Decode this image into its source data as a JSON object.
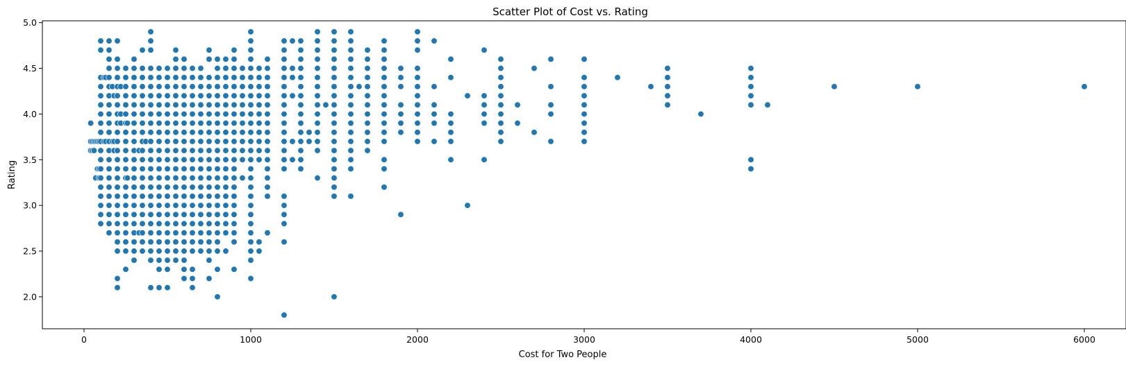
{
  "chart_data": {
    "type": "scatter",
    "title": "Scatter Plot of Cost vs. Rating",
    "xlabel": "Cost for Two People",
    "ylabel": "Rating",
    "xlim": [
      -250,
      6250
    ],
    "ylim": [
      1.65,
      5.02
    ],
    "xticks": [
      0,
      1000,
      2000,
      3000,
      4000,
      5000,
      6000
    ],
    "yticks": [
      2.0,
      2.5,
      3.0,
      3.5,
      4.0,
      4.5,
      5.0
    ],
    "xtick_labels": [
      "0",
      "1000",
      "2000",
      "3000",
      "4000",
      "5000",
      "6000"
    ],
    "ytick_labels": [
      "2.0",
      "2.5",
      "3.0",
      "3.5",
      "4.0",
      "4.5",
      "5.0"
    ],
    "grid": false,
    "marker_color": "#1f77b4",
    "marker_edge_color": "#ffffff",
    "columns": [
      {
        "x": 40,
        "y": [
          3.6,
          3.7,
          3.9
        ]
      },
      {
        "x": 50,
        "y": [
          3.6,
          3.7
        ]
      },
      {
        "x": 60,
        "y": [
          3.6,
          3.7
        ]
      },
      {
        "x": 70,
        "y": [
          3.3,
          3.7
        ]
      },
      {
        "x": 80,
        "y": [
          3.4,
          3.7
        ]
      },
      {
        "x": 90,
        "y": [
          3.3,
          3.4,
          3.7
        ]
      },
      {
        "x": 100,
        "y": [
          2.8,
          2.9,
          3.0,
          3.1,
          3.2,
          3.3,
          3.4,
          3.5,
          3.6,
          3.7,
          3.8,
          3.9,
          4.0,
          4.1,
          4.2,
          4.3,
          4.4,
          4.7,
          4.8
        ]
      },
      {
        "x": 120,
        "y": [
          3.7,
          4.4
        ]
      },
      {
        "x": 130,
        "y": [
          3.7,
          4.4
        ]
      },
      {
        "x": 150,
        "y": [
          2.7,
          2.8,
          2.9,
          3.0,
          3.1,
          3.2,
          3.3,
          3.4,
          3.5,
          3.6,
          3.7,
          3.8,
          3.9,
          4.0,
          4.1,
          4.2,
          4.3,
          4.4,
          4.5,
          4.6,
          4.7,
          4.8
        ]
      },
      {
        "x": 170,
        "y": [
          3.7,
          4.3
        ]
      },
      {
        "x": 180,
        "y": [
          3.6,
          3.7,
          4.2
        ]
      },
      {
        "x": 200,
        "y": [
          2.1,
          2.2,
          2.5,
          2.6,
          2.7,
          2.8,
          2.9,
          3.0,
          3.1,
          3.2,
          3.3,
          3.4,
          3.5,
          3.6,
          3.7,
          3.8,
          3.9,
          4.0,
          4.1,
          4.2,
          4.3,
          4.4,
          4.5,
          4.6,
          4.8
        ]
      },
      {
        "x": 220,
        "y": [
          3.9,
          4.0,
          4.3
        ]
      },
      {
        "x": 250,
        "y": [
          2.3,
          2.5,
          2.6,
          2.7,
          2.8,
          2.9,
          3.0,
          3.1,
          3.2,
          3.3,
          3.4,
          3.5,
          3.6,
          3.7,
          3.8,
          3.9,
          4.0,
          4.1,
          4.2,
          4.3,
          4.4,
          4.5
        ]
      },
      {
        "x": 260,
        "y": [
          3.3,
          3.9
        ]
      },
      {
        "x": 300,
        "y": [
          2.4,
          2.5,
          2.6,
          2.7,
          2.8,
          2.9,
          3.0,
          3.1,
          3.2,
          3.3,
          3.4,
          3.5,
          3.6,
          3.7,
          3.8,
          3.9,
          4.0,
          4.1,
          4.2,
          4.3,
          4.4,
          4.5,
          4.6
        ]
      },
      {
        "x": 330,
        "y": [
          2.7,
          3.6
        ]
      },
      {
        "x": 350,
        "y": [
          2.5,
          2.6,
          2.7,
          2.8,
          2.9,
          3.0,
          3.1,
          3.2,
          3.3,
          3.4,
          3.5,
          3.6,
          3.7,
          3.8,
          3.9,
          4.0,
          4.1,
          4.2,
          4.3,
          4.4,
          4.5,
          4.7
        ]
      },
      {
        "x": 370,
        "y": [
          3.7
        ]
      },
      {
        "x": 400,
        "y": [
          2.1,
          2.4,
          2.5,
          2.6,
          2.7,
          2.8,
          2.9,
          3.0,
          3.1,
          3.2,
          3.3,
          3.4,
          3.5,
          3.6,
          3.7,
          3.8,
          3.9,
          4.0,
          4.1,
          4.2,
          4.3,
          4.4,
          4.5,
          4.7,
          4.8,
          4.9
        ]
      },
      {
        "x": 450,
        "y": [
          2.1,
          2.3,
          2.4,
          2.5,
          2.6,
          2.7,
          2.8,
          2.9,
          3.0,
          3.1,
          3.2,
          3.3,
          3.4,
          3.5,
          3.6,
          3.7,
          3.8,
          3.9,
          4.0,
          4.1,
          4.2,
          4.3,
          4.4,
          4.5
        ]
      },
      {
        "x": 500,
        "y": [
          2.1,
          2.3,
          2.4,
          2.5,
          2.6,
          2.7,
          2.8,
          2.9,
          3.0,
          3.1,
          3.2,
          3.3,
          3.4,
          3.5,
          3.6,
          3.7,
          3.8,
          3.9,
          4.0,
          4.1,
          4.2,
          4.3,
          4.4,
          4.5
        ]
      },
      {
        "x": 550,
        "y": [
          2.4,
          2.5,
          2.6,
          2.7,
          2.8,
          2.9,
          3.0,
          3.1,
          3.2,
          3.3,
          3.4,
          3.5,
          3.6,
          3.7,
          3.8,
          3.9,
          4.0,
          4.1,
          4.2,
          4.3,
          4.4,
          4.5,
          4.6,
          4.7
        ]
      },
      {
        "x": 600,
        "y": [
          2.2,
          2.3,
          2.4,
          2.5,
          2.6,
          2.7,
          2.8,
          2.9,
          3.0,
          3.1,
          3.2,
          3.3,
          3.4,
          3.5,
          3.6,
          3.7,
          3.8,
          3.9,
          4.0,
          4.1,
          4.2,
          4.3,
          4.4,
          4.5,
          4.6
        ]
      },
      {
        "x": 650,
        "y": [
          2.1,
          2.2,
          2.3,
          2.5,
          2.6,
          2.7,
          2.8,
          2.9,
          3.0,
          3.1,
          3.2,
          3.3,
          3.4,
          3.5,
          3.6,
          3.7,
          3.8,
          3.9,
          4.0,
          4.1,
          4.2,
          4.3,
          4.4,
          4.5
        ]
      },
      {
        "x": 700,
        "y": [
          2.5,
          2.6,
          2.7,
          2.8,
          2.9,
          3.0,
          3.1,
          3.2,
          3.3,
          3.4,
          3.5,
          3.6,
          3.7,
          3.8,
          3.9,
          4.0,
          4.1,
          4.2,
          4.3,
          4.4,
          4.5
        ]
      },
      {
        "x": 750,
        "y": [
          2.2,
          2.4,
          2.5,
          2.6,
          2.7,
          2.8,
          2.9,
          3.0,
          3.1,
          3.2,
          3.3,
          3.4,
          3.5,
          3.6,
          3.7,
          3.8,
          3.9,
          4.0,
          4.1,
          4.2,
          4.3,
          4.4,
          4.6,
          4.7
        ]
      },
      {
        "x": 800,
        "y": [
          2.0,
          2.3,
          2.5,
          2.6,
          2.7,
          2.8,
          2.9,
          3.0,
          3.1,
          3.2,
          3.3,
          3.4,
          3.5,
          3.6,
          3.7,
          3.8,
          3.9,
          4.0,
          4.1,
          4.2,
          4.3,
          4.4,
          4.5,
          4.6
        ]
      },
      {
        "x": 850,
        "y": [
          2.5,
          2.7,
          2.8,
          2.9,
          3.0,
          3.1,
          3.2,
          3.3,
          3.4,
          3.5,
          3.6,
          3.7,
          3.8,
          3.9,
          4.0,
          4.1,
          4.2,
          4.3,
          4.4,
          4.5,
          4.6
        ]
      },
      {
        "x": 900,
        "y": [
          2.3,
          2.6,
          2.7,
          2.8,
          2.9,
          3.0,
          3.1,
          3.2,
          3.3,
          3.4,
          3.5,
          3.6,
          3.7,
          3.8,
          3.9,
          4.0,
          4.1,
          4.2,
          4.3,
          4.4,
          4.5,
          4.6,
          4.7
        ]
      },
      {
        "x": 950,
        "y": [
          3.3,
          3.5,
          3.6,
          3.7,
          3.8,
          3.9,
          4.0,
          4.1,
          4.2,
          4.3,
          4.4,
          4.5
        ]
      },
      {
        "x": 1000,
        "y": [
          2.2,
          2.4,
          2.5,
          2.6,
          2.7,
          2.8,
          2.9,
          3.0,
          3.1,
          3.2,
          3.3,
          3.4,
          3.5,
          3.6,
          3.7,
          3.8,
          3.9,
          4.0,
          4.1,
          4.2,
          4.3,
          4.4,
          4.5,
          4.6,
          4.7,
          4.8,
          4.9
        ]
      },
      {
        "x": 1050,
        "y": [
          2.5,
          2.6,
          3.5,
          3.6,
          3.7,
          3.8,
          3.9,
          4.0,
          4.1,
          4.2,
          4.3,
          4.4,
          4.5
        ]
      },
      {
        "x": 1100,
        "y": [
          2.7,
          3.1,
          3.2,
          3.3,
          3.4,
          3.5,
          3.6,
          3.7,
          3.8,
          3.9,
          4.0,
          4.1,
          4.2,
          4.3,
          4.4,
          4.5,
          4.6
        ]
      },
      {
        "x": 1200,
        "y": [
          1.8,
          2.6,
          2.8,
          2.9,
          3.0,
          3.1,
          3.4,
          3.5,
          3.6,
          3.7,
          3.8,
          3.9,
          4.0,
          4.1,
          4.2,
          4.3,
          4.4,
          4.5,
          4.6,
          4.7,
          4.8
        ]
      },
      {
        "x": 1250,
        "y": [
          3.5,
          3.7,
          4.2,
          4.4,
          4.5,
          4.8
        ]
      },
      {
        "x": 1300,
        "y": [
          3.4,
          3.5,
          3.6,
          3.7,
          3.8,
          3.9,
          4.0,
          4.1,
          4.2,
          4.3,
          4.4,
          4.5,
          4.6,
          4.7,
          4.8
        ]
      },
      {
        "x": 1350,
        "y": [
          3.7,
          3.8
        ]
      },
      {
        "x": 1400,
        "y": [
          3.3,
          3.6,
          3.7,
          3.8,
          3.9,
          4.0,
          4.1,
          4.2,
          4.3,
          4.4,
          4.5,
          4.6,
          4.7,
          4.8,
          4.9
        ]
      },
      {
        "x": 1450,
        "y": [
          4.1
        ]
      },
      {
        "x": 1500,
        "y": [
          2.0,
          3.1,
          3.2,
          3.3,
          3.4,
          3.5,
          3.6,
          3.7,
          3.8,
          3.9,
          4.0,
          4.1,
          4.2,
          4.3,
          4.4,
          4.5,
          4.6,
          4.7,
          4.8,
          4.9
        ]
      },
      {
        "x": 1600,
        "y": [
          3.1,
          3.4,
          3.5,
          3.6,
          3.7,
          3.8,
          3.9,
          4.0,
          4.1,
          4.2,
          4.3,
          4.4,
          4.5,
          4.6,
          4.7,
          4.8,
          4.9
        ]
      },
      {
        "x": 1650,
        "y": [
          4.3
        ]
      },
      {
        "x": 1700,
        "y": [
          3.6,
          3.7,
          3.8,
          3.9,
          4.0,
          4.1,
          4.2,
          4.3,
          4.4,
          4.5,
          4.6,
          4.7
        ]
      },
      {
        "x": 1800,
        "y": [
          3.2,
          3.4,
          3.5,
          3.7,
          3.8,
          3.9,
          4.0,
          4.1,
          4.2,
          4.3,
          4.4,
          4.5,
          4.6,
          4.7,
          4.8
        ]
      },
      {
        "x": 1900,
        "y": [
          2.9,
          3.8,
          3.9,
          4.0,
          4.1,
          4.3,
          4.4,
          4.5
        ]
      },
      {
        "x": 2000,
        "y": [
          3.7,
          3.8,
          3.9,
          4.0,
          4.1,
          4.2,
          4.3,
          4.4,
          4.5,
          4.7,
          4.8,
          4.9
        ]
      },
      {
        "x": 2100,
        "y": [
          3.7,
          3.9,
          4.0,
          4.1,
          4.3,
          4.8
        ]
      },
      {
        "x": 2200,
        "y": [
          3.5,
          3.7,
          3.8,
          3.9,
          4.0,
          4.4,
          4.6
        ]
      },
      {
        "x": 2300,
        "y": [
          3.0,
          4.2
        ]
      },
      {
        "x": 2400,
        "y": [
          3.5,
          3.9,
          4.0,
          4.1,
          4.2,
          4.7
        ]
      },
      {
        "x": 2500,
        "y": [
          3.7,
          3.8,
          3.9,
          4.0,
          4.1,
          4.2,
          4.3,
          4.4,
          4.5,
          4.6
        ]
      },
      {
        "x": 2600,
        "y": [
          3.9,
          4.1
        ]
      },
      {
        "x": 2700,
        "y": [
          3.8,
          4.5
        ]
      },
      {
        "x": 2800,
        "y": [
          3.7,
          4.0,
          4.1,
          4.3,
          4.6
        ]
      },
      {
        "x": 3000,
        "y": [
          3.7,
          3.8,
          3.9,
          4.0,
          4.1,
          4.2,
          4.3,
          4.4,
          4.6
        ]
      },
      {
        "x": 3200,
        "y": [
          4.4
        ]
      },
      {
        "x": 3400,
        "y": [
          4.3
        ]
      },
      {
        "x": 3500,
        "y": [
          4.1,
          4.2,
          4.3,
          4.4,
          4.5
        ]
      },
      {
        "x": 3700,
        "y": [
          4.0
        ]
      },
      {
        "x": 4000,
        "y": [
          3.4,
          3.5,
          4.1,
          4.2,
          4.3,
          4.4,
          4.5
        ]
      },
      {
        "x": 4100,
        "y": [
          4.1
        ]
      },
      {
        "x": 4500,
        "y": [
          4.3
        ]
      },
      {
        "x": 5000,
        "y": [
          4.3
        ]
      },
      {
        "x": 6000,
        "y": [
          4.3
        ]
      }
    ]
  }
}
